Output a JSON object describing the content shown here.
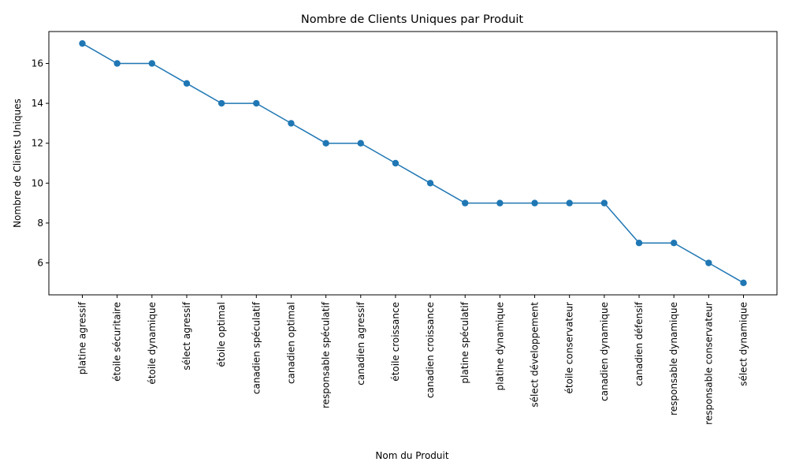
{
  "chart_data": {
    "type": "line",
    "title": "Nombre de Clients Uniques par Produit",
    "xlabel": "Nom du Produit",
    "ylabel": "Nombre de Clients Uniques",
    "categories": [
      "platine agressif",
      "étoile sécuritaire",
      "étoile dynamique",
      "sélect agressif",
      "étoile optimal",
      "canadien spéculatif",
      "canadien optimal",
      "responsable spéculatif",
      "canadien agressif",
      "étoile croissance",
      "canadien croissance",
      "platine spéculatif",
      "platine dynamique",
      "sélect développement",
      "étoile conservateur",
      "canadien dynamique",
      "canadien défensif",
      "responsable dynamique",
      "responsable conservateur",
      "sélect dynamique"
    ],
    "series": [
      {
        "values": [
          17,
          16,
          16,
          15,
          14,
          14,
          13,
          12,
          12,
          11,
          10,
          9,
          9,
          9,
          9,
          9,
          7,
          7,
          6,
          5
        ],
        "color": "#1f77b4",
        "marker": "circle"
      }
    ],
    "yticks": [
      "6",
      "8",
      "10",
      "12",
      "14",
      "16"
    ],
    "ylim": [
      4.4,
      17.6
    ],
    "grid": false,
    "legend": false
  }
}
